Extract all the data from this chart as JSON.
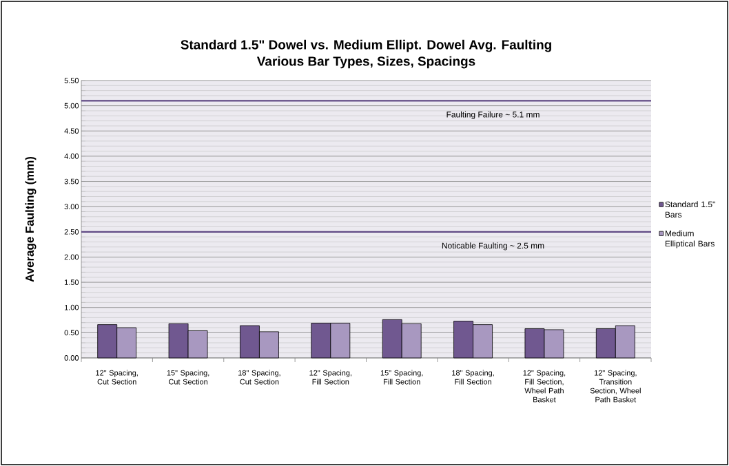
{
  "chart_data": {
    "type": "bar",
    "title": "Standard 1.5\" Dowel vs. Medium Ellipt. Dowel Avg. Faulting",
    "subtitle": "Various Bar Types, Sizes, Spacings",
    "ylabel": "Average Faulting  (mm)",
    "categories": [
      "12\" Spacing, Cut Section",
      "15\" Spacing, Cut Section",
      "18\" Spacing, Cut Section",
      "12\" Spacing, Fill Section",
      "15\" Spacing, Fill Section",
      "18\" Spacing, Fill Section",
      "12\" Spacing, Fill Section, Wheel Path Basket",
      "12\" Spacing, Transition Section, Wheel Path Basket"
    ],
    "series": [
      {
        "name": "Standard 1.5\" Bars",
        "color": "#705890",
        "values": [
          0.66,
          0.68,
          0.64,
          0.69,
          0.76,
          0.73,
          0.58,
          0.58
        ]
      },
      {
        "name": "Medium Elliptical Bars",
        "color": "#a898c0",
        "values": [
          0.6,
          0.54,
          0.52,
          0.69,
          0.68,
          0.66,
          0.56,
          0.64
        ]
      }
    ],
    "ylim": [
      0,
      5.5
    ],
    "yticks": [
      {
        "value": 0,
        "label": "0.00"
      },
      {
        "value": 0.5,
        "label": "0.50"
      },
      {
        "value": 1,
        "label": "1.00"
      },
      {
        "value": 1.5,
        "label": "1.50"
      },
      {
        "value": 2,
        "label": "2.00"
      },
      {
        "value": 2.5,
        "label": "2.50"
      },
      {
        "value": 3,
        "label": "3.00"
      },
      {
        "value": 3.5,
        "label": "3.50"
      },
      {
        "value": 4,
        "label": "4.00"
      },
      {
        "value": 4.5,
        "label": "4.50"
      },
      {
        "value": 5,
        "label": "5.00"
      },
      {
        "value": 5.5,
        "label": "5.50"
      }
    ],
    "ref_lines": [
      {
        "axis": "y",
        "value": 5.1,
        "label": "Faulting Failure ~ 5.1 mm",
        "color": "#604a85"
      },
      {
        "axis": "y",
        "value": 2.5,
        "label": "Noticable Faulting ~ 2.5 mm",
        "color": "#604a85"
      }
    ],
    "grid": "y",
    "legend": "right"
  }
}
